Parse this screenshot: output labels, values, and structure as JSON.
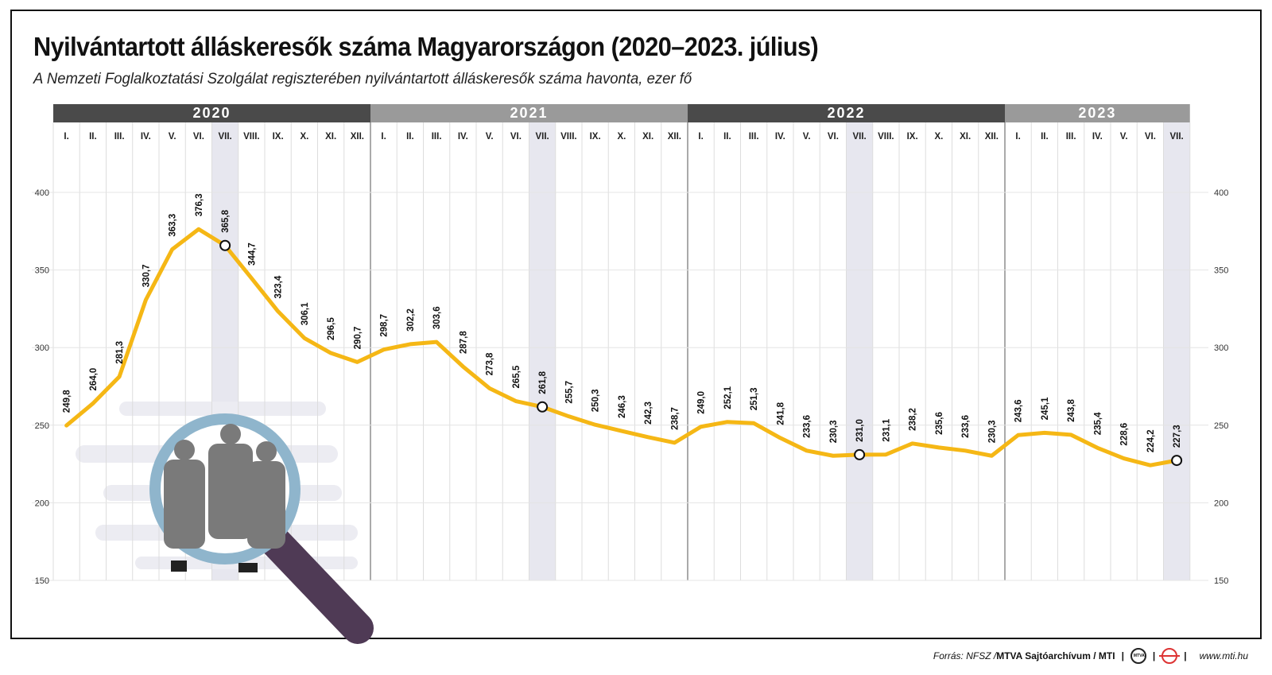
{
  "header": {
    "title": "Nyilvántartott álláskeresők száma Magyarországon (2020–2023. július)",
    "subtitle": "A Nemzeti Foglalkoztatási Szolgálat regiszterében nyilvántartott álláskeresők száma havonta, ezer fő"
  },
  "footer": {
    "source": "Forrás: NFSZ / ",
    "agency": "MTVA Sajtóarchívum / MTI",
    "site": "www.mti.hu"
  },
  "colors": {
    "line": "#f5b715",
    "year_dark": "#4a4a4a",
    "year_light": "#9a9a9a",
    "july_band": "#e7e7ef",
    "magnifier_rim": "#8fb5cc",
    "magnifier_handle": "#4f3a55"
  },
  "chart_data": {
    "type": "line",
    "years": [
      {
        "label": "2020",
        "months": 12
      },
      {
        "label": "2021",
        "months": 12
      },
      {
        "label": "2022",
        "months": 12
      },
      {
        "label": "2023",
        "months": 7
      }
    ],
    "month_labels": [
      "I.",
      "II.",
      "III.",
      "IV.",
      "V.",
      "VI.",
      "VII.",
      "VIII.",
      "IX.",
      "X.",
      "XI.",
      "XII."
    ],
    "values": [
      249.8,
      264.0,
      281.3,
      330.7,
      363.3,
      376.3,
      365.8,
      344.7,
      323.4,
      306.1,
      296.5,
      290.7,
      298.7,
      302.2,
      303.6,
      287.8,
      273.8,
      265.5,
      261.8,
      255.7,
      250.3,
      246.3,
      242.3,
      238.7,
      249.0,
      252.1,
      251.3,
      241.8,
      233.6,
      230.3,
      231.0,
      231.1,
      238.2,
      235.6,
      233.6,
      230.3,
      243.6,
      245.1,
      243.8,
      235.4,
      228.6,
      224.2,
      227.3
    ],
    "value_labels": [
      "249,8",
      "264,0",
      "281,3",
      "330,7",
      "363,3",
      "376,3",
      "365,8",
      "344,7",
      "323,4",
      "306,1",
      "296,5",
      "290,7",
      "298,7",
      "302,2",
      "303,6",
      "287,8",
      "273,8",
      "265,5",
      "261,8",
      "255,7",
      "250,3",
      "246,3",
      "242,3",
      "238,7",
      "249,0",
      "252,1",
      "251,3",
      "241,8",
      "233,6",
      "230,3",
      "231,0",
      "231,1",
      "238,2",
      "235,6",
      "233,6",
      "230,3",
      "243,6",
      "245,1",
      "243,8",
      "235,4",
      "228,6",
      "224,2",
      "227,3"
    ],
    "highlight_month": "VII.",
    "ylim": [
      150,
      400
    ],
    "yticks": [
      150,
      200,
      250,
      300,
      350,
      400
    ],
    "grid": true
  }
}
